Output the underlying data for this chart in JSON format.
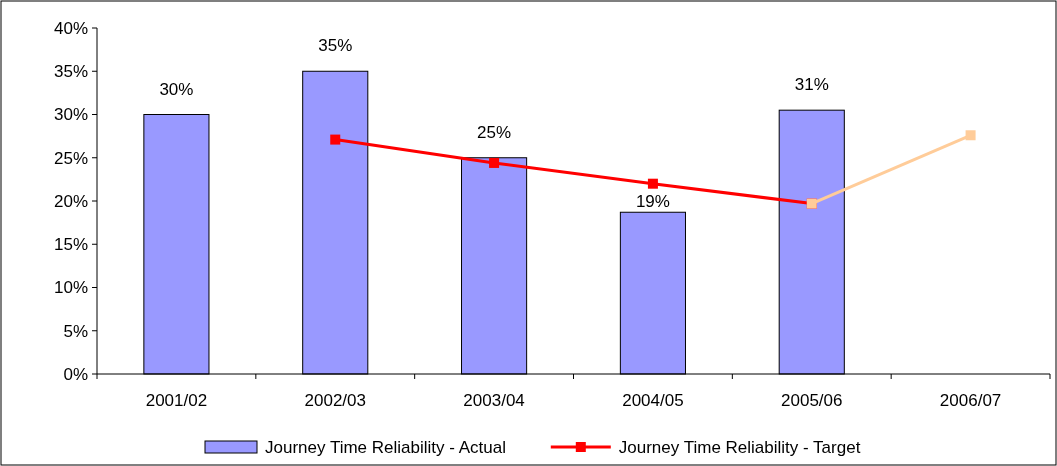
{
  "chart_data": {
    "type": "bar",
    "categories": [
      "2001/02",
      "2002/03",
      "2003/04",
      "2004/05",
      "2005/06",
      "2006/07"
    ],
    "series": [
      {
        "name": "Journey Time Reliability - Actual",
        "color": "#9999ff",
        "values": [
          30,
          35,
          25,
          18.7,
          30.5,
          null
        ],
        "value_labels": [
          "30%",
          "35%",
          "25%",
          "19%",
          "31%",
          null
        ]
      },
      {
        "name": "Journey Time Reliability - Target",
        "type": "line",
        "color": "#ff0000",
        "values": [
          null,
          27.1,
          24.4,
          22,
          19.7,
          null
        ]
      },
      {
        "type": "line",
        "color": "#ffcc99",
        "values": [
          null,
          null,
          null,
          null,
          19.7,
          27.6
        ]
      }
    ],
    "ylim": [
      0,
      40
    ],
    "yticks": [
      {
        "value": 0,
        "label": "0%"
      },
      {
        "value": 5,
        "label": "5%"
      },
      {
        "value": 10,
        "label": "10%"
      },
      {
        "value": 15,
        "label": "15%"
      },
      {
        "value": 20,
        "label": "20%"
      },
      {
        "value": 25,
        "label": "25%"
      },
      {
        "value": 30,
        "label": "30%"
      },
      {
        "value": 35,
        "label": "35%"
      },
      {
        "value": 40,
        "label": "40%"
      }
    ],
    "marker": "square",
    "line_style": "solid",
    "legend": "bottom",
    "grid": false
  }
}
